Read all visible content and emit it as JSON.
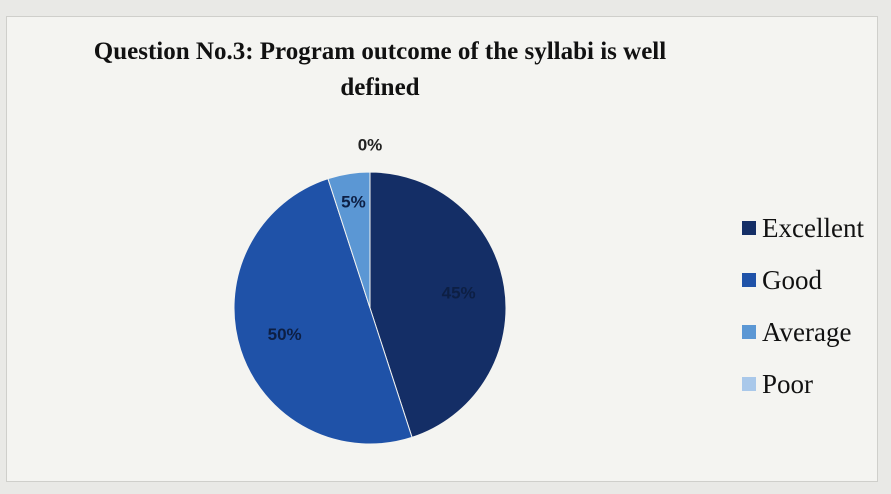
{
  "chart_data": {
    "type": "pie",
    "title": "Question No.3: Program outcome of the syllabi is well defined",
    "categories": [
      "Excellent",
      "Good",
      "Average",
      "Poor"
    ],
    "values": [
      45,
      50,
      5,
      0
    ],
    "labels": [
      "45%",
      "50%",
      "5%",
      "0%"
    ],
    "colors": [
      "#142e66",
      "#1f52a8",
      "#5b97d4",
      "#a9c8ea"
    ],
    "legend_position": "right"
  }
}
